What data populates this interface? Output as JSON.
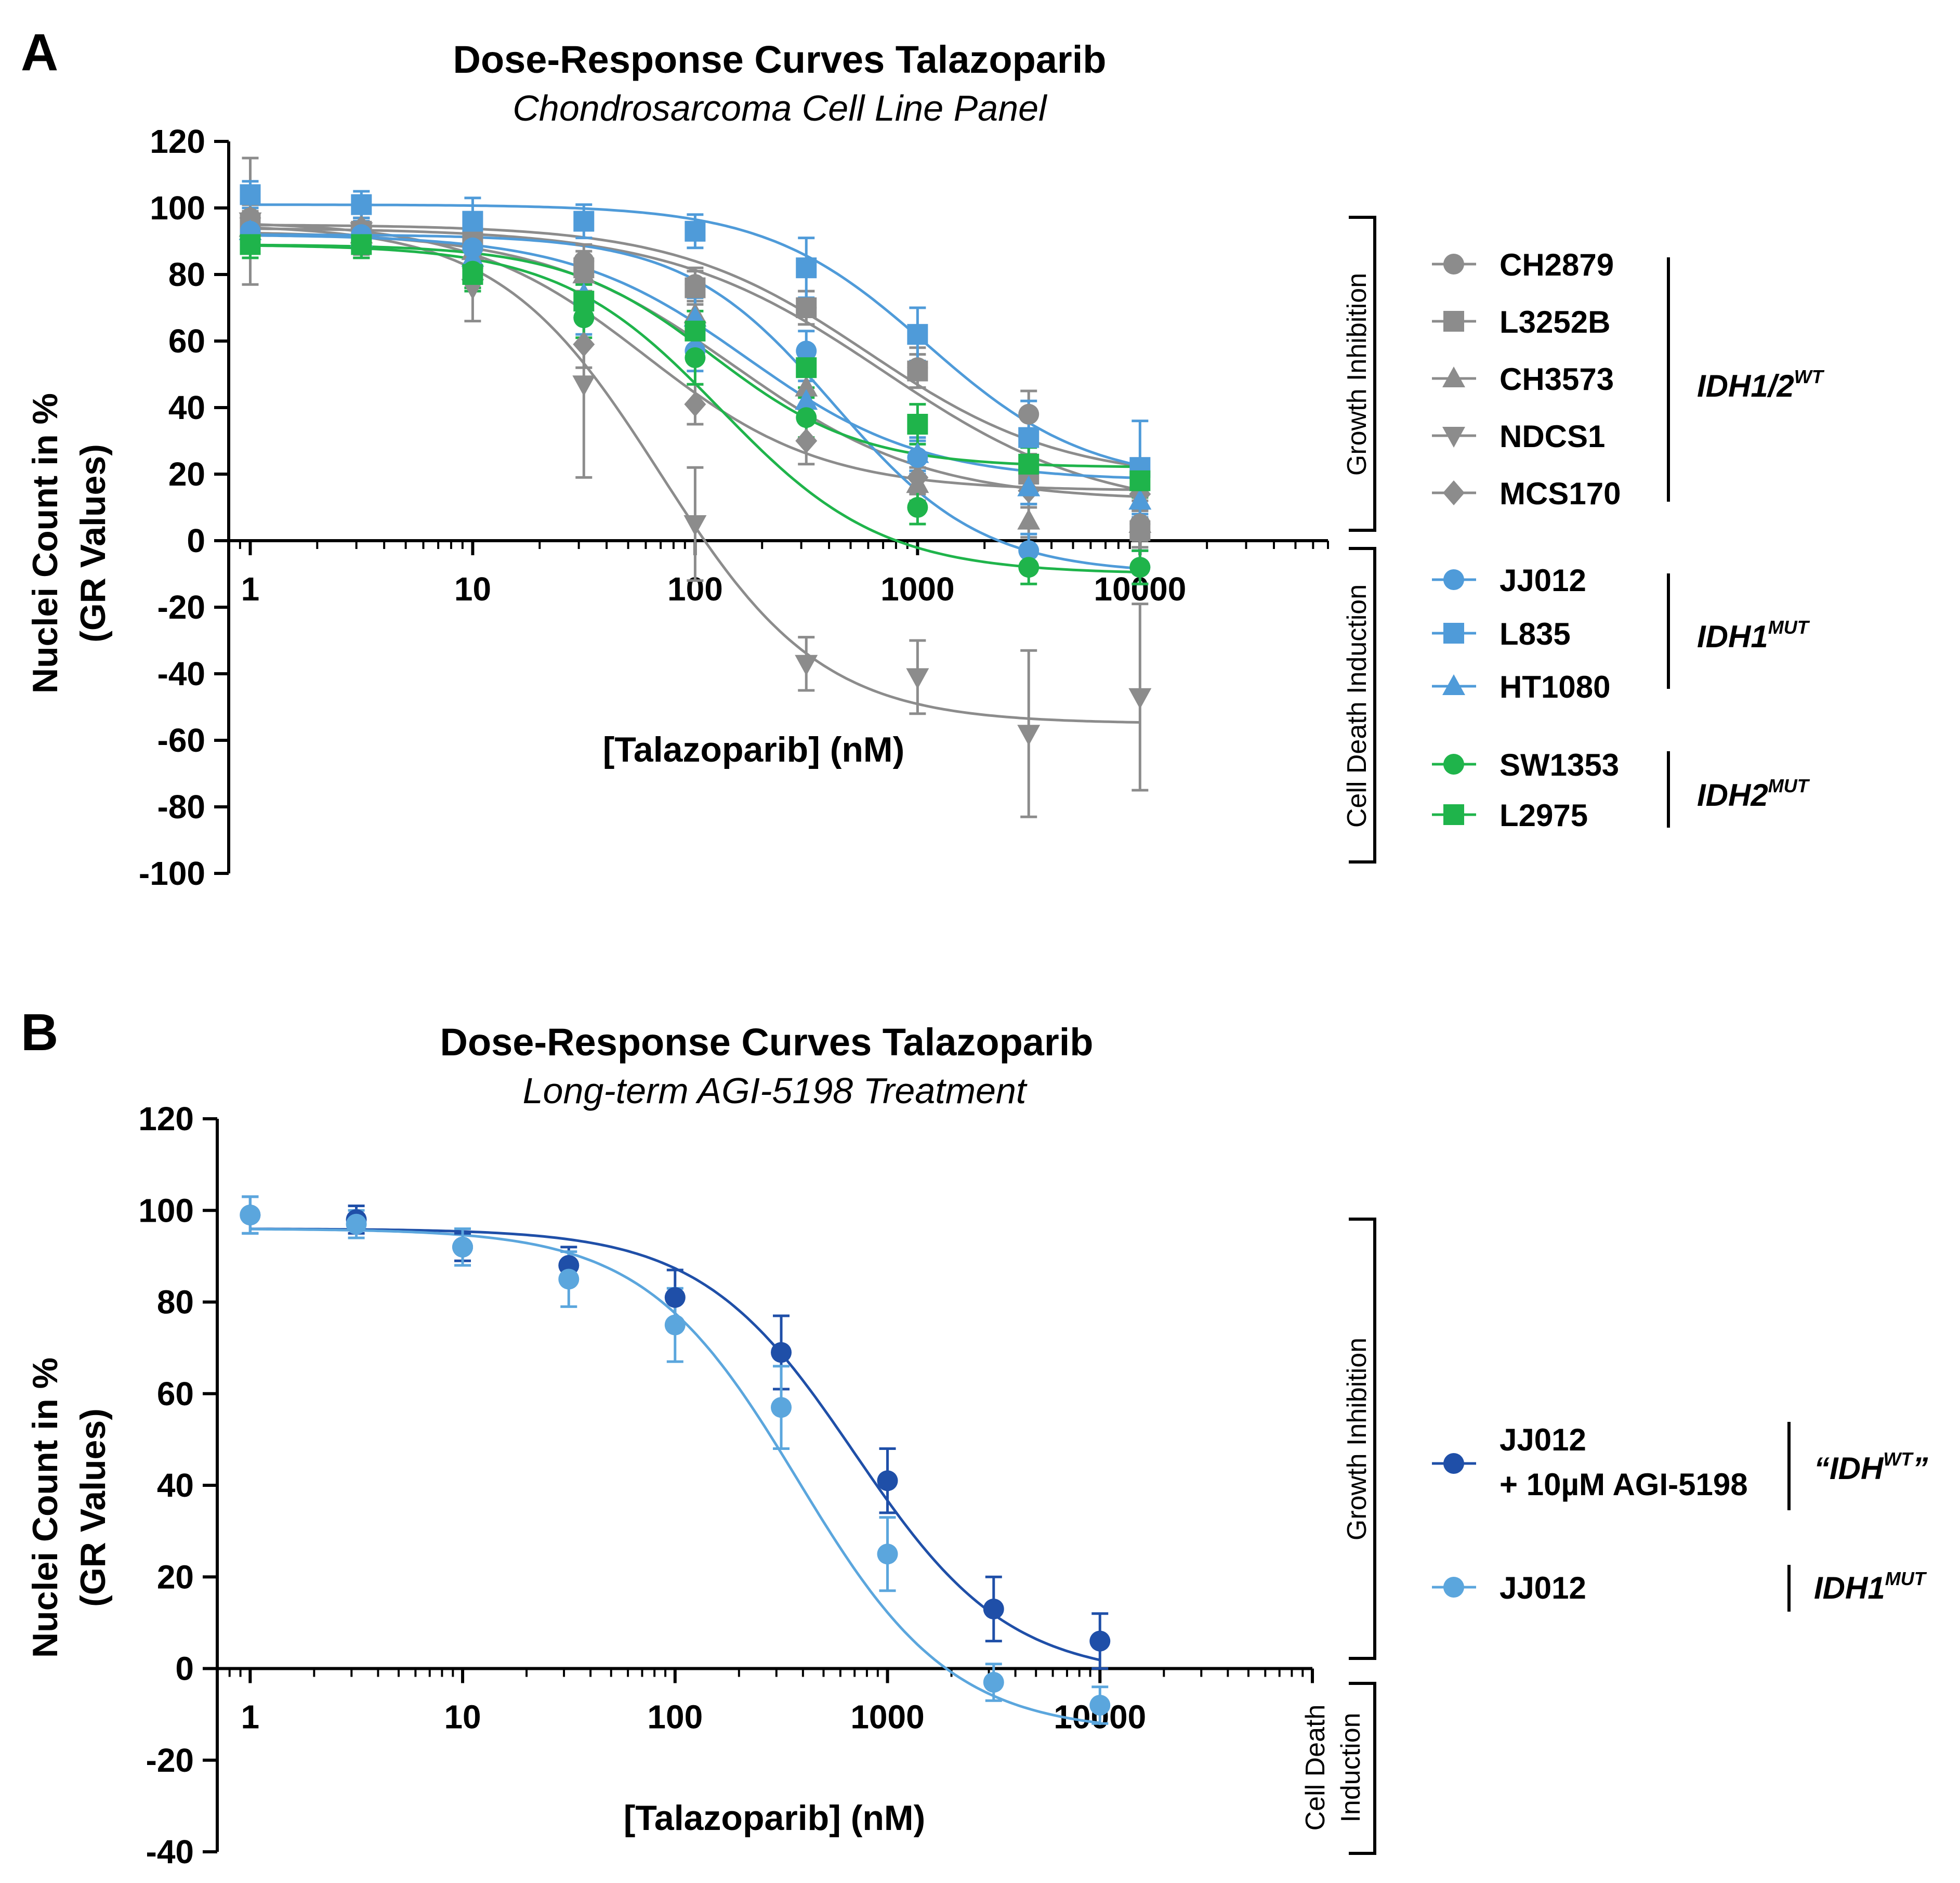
{
  "chart_data": [
    {
      "panel_letter": "A",
      "type": "scatter",
      "title": "Dose-Response Curves Talazoparib",
      "subtitle": "Chondrosarcoma Cell Line Panel",
      "xlabel": "[Talazoparib] (nM)",
      "ylabel_line1": "Nuclei Count in %",
      "ylabel_line2": "(GR Values)",
      "x_scale": "log",
      "xlim": [
        0.8,
        70000
      ],
      "ylim": [
        -100,
        120
      ],
      "x_ticks": [
        1,
        10,
        100,
        1000,
        10000
      ],
      "x_tick_labels": [
        "1",
        "10",
        "100",
        "1000",
        "10000"
      ],
      "y_ticks": [
        -100,
        -80,
        -60,
        -40,
        -20,
        0,
        20,
        40,
        60,
        80,
        100,
        120
      ],
      "y_tick_labels": [
        "-100",
        "-80",
        "-60",
        "-40",
        "-20",
        "0",
        "20",
        "40",
        "60",
        "80",
        "100",
        "120"
      ],
      "response_brackets": [
        "Growth Inhibition",
        "Cell Death Induction"
      ],
      "legend_groups": [
        {
          "label": "IDH1/2",
          "superscript": "WT",
          "series": [
            "CH2879",
            "L3252B",
            "CH3573",
            "NDCS1",
            "MCS170"
          ]
        },
        {
          "label": "IDH1",
          "superscript": "MUT",
          "series": [
            "JJ012",
            "L835",
            "HT1080"
          ]
        },
        {
          "label": "IDH2",
          "superscript": "MUT",
          "series": [
            "SW1353",
            "L2975"
          ]
        }
      ],
      "x": [
        1,
        3.16,
        10,
        31.6,
        100,
        316,
        1000,
        3160,
        10000
      ],
      "series": [
        {
          "name": "CH2879",
          "color": "#8c8c8c",
          "marker": "circle",
          "values": [
            97,
            93,
            88,
            84,
            77,
            70,
            52,
            38,
            5
          ],
          "errors": [
            4,
            4,
            5,
            5,
            5,
            5,
            6,
            7,
            7
          ],
          "fit": {
            "bottom": 18,
            "top": 95,
            "ec50": 600,
            "hill": 1.0
          }
        },
        {
          "name": "L3252B",
          "color": "#8c8c8c",
          "marker": "square",
          "values": [
            95,
            93,
            90,
            82,
            76,
            70,
            51,
            20,
            3
          ],
          "errors": [
            4,
            4,
            5,
            5,
            5,
            5,
            5,
            6,
            6
          ],
          "fit": {
            "bottom": 8,
            "top": 94,
            "ec50": 700,
            "hill": 0.9
          }
        },
        {
          "name": "CH3573",
          "color": "#8c8c8c",
          "marker": "triangle-up",
          "values": [
            94,
            92,
            87,
            80,
            68,
            46,
            17,
            6,
            5
          ],
          "errors": [
            4,
            4,
            5,
            5,
            6,
            6,
            5,
            5,
            5
          ],
          "fit": {
            "bottom": 12,
            "top": 93,
            "ec50": 150,
            "hill": 1.0
          }
        },
        {
          "name": "NDCS1",
          "color": "#8c8c8c",
          "marker": "triangle-down",
          "values": [
            96,
            93,
            76,
            47,
            5,
            -37,
            -41,
            -58,
            -47
          ],
          "errors": [
            19,
            7,
            10,
            28,
            17,
            8,
            11,
            25,
            28
          ],
          "fit": {
            "bottom": -55,
            "top": 95,
            "ec50": 70,
            "hill": 1.2
          }
        },
        {
          "name": "MCS170",
          "color": "#8c8c8c",
          "marker": "diamond",
          "values": [
            97,
            94,
            82,
            59,
            41,
            30,
            19,
            15,
            14
          ],
          "errors": [
            4,
            5,
            6,
            7,
            6,
            7,
            5,
            5,
            5
          ],
          "fit": {
            "bottom": 15,
            "top": 96,
            "ec50": 60,
            "hill": 1.1
          }
        },
        {
          "name": "JJ012",
          "color": "#4f9bd9",
          "marker": "circle",
          "values": [
            93,
            92,
            88,
            67,
            57,
            57,
            25,
            -3,
            -8
          ],
          "errors": [
            4,
            4,
            6,
            5,
            6,
            6,
            5,
            5,
            5
          ],
          "fit": {
            "bottom": -10,
            "top": 92,
            "ec50": 420,
            "hill": 1.3
          }
        },
        {
          "name": "L835",
          "color": "#4f9bd9",
          "marker": "square",
          "values": [
            104,
            101,
            96,
            96,
            93,
            82,
            62,
            31,
            22
          ],
          "errors": [
            4,
            4,
            7,
            5,
            5,
            9,
            8,
            11,
            14
          ],
          "fit": {
            "bottom": 17,
            "top": 101,
            "ec50": 1100,
            "hill": 1.2
          }
        },
        {
          "name": "HT1080",
          "color": "#4f9bd9",
          "marker": "triangle-up",
          "values": [
            93,
            91,
            85,
            74,
            67,
            42,
            26,
            16,
            12
          ],
          "errors": [
            4,
            4,
            5,
            5,
            6,
            6,
            5,
            5,
            5
          ],
          "fit": {
            "bottom": 18,
            "top": 92,
            "ec50": 170,
            "hill": 1.1
          }
        },
        {
          "name": "SW1353",
          "color": "#1fb44b",
          "marker": "circle",
          "values": [
            89,
            89,
            81,
            67,
            55,
            37,
            10,
            -8,
            -8
          ],
          "errors": [
            4,
            4,
            5,
            6,
            8,
            6,
            5,
            5,
            5
          ],
          "fit": {
            "bottom": -10,
            "top": 89,
            "ec50": 130,
            "hill": 1.2
          }
        },
        {
          "name": "L2975",
          "color": "#1fb44b",
          "marker": "square",
          "values": [
            89,
            89,
            80,
            72,
            63,
            52,
            35,
            23,
            18
          ],
          "errors": [
            4,
            4,
            5,
            5,
            6,
            6,
            6,
            5,
            5
          ],
          "fit": {
            "bottom": 22,
            "top": 89,
            "ec50": 120,
            "hill": 1.3
          }
        }
      ]
    },
    {
      "panel_letter": "B",
      "type": "scatter",
      "title": "Dose-Response Curves Talazoparib",
      "subtitle": "Long-term AGI-5198 Treatment",
      "xlabel": "[Talazoparib] (nM)",
      "ylabel_line1": "Nuclei Count in %",
      "ylabel_line2": "(GR Values)",
      "x_scale": "log",
      "xlim": [
        0.7,
        100000
      ],
      "ylim": [
        -40,
        120
      ],
      "x_ticks": [
        1,
        10,
        100,
        1000,
        10000
      ],
      "x_tick_labels": [
        "1",
        "10",
        "100",
        "1000",
        "10000"
      ],
      "y_ticks": [
        -40,
        -20,
        0,
        20,
        40,
        60,
        80,
        100,
        120
      ],
      "y_tick_labels": [
        "-40",
        "-20",
        "0",
        "20",
        "40",
        "60",
        "80",
        "100",
        "120"
      ],
      "response_brackets": [
        "Growth Inhibition",
        "Cell Death",
        "Induction"
      ],
      "legend_groups": [
        {
          "label": "“IDH",
          "superscript": "WT",
          "suffix": "”",
          "series": [
            "JJ012 + 10µM AGI-5198"
          ]
        },
        {
          "label": "IDH1",
          "superscript": "MUT",
          "series": [
            "JJ012"
          ]
        }
      ],
      "x": [
        1,
        3.16,
        10,
        31.6,
        100,
        316,
        1000,
        3160,
        10000
      ],
      "series": [
        {
          "name": "JJ012 + 10µM AGI-5198",
          "name_line1": "JJ012",
          "name_line2": "+ 10µM AGI-5198",
          "color": "#1f4fa8",
          "marker": "circle",
          "values": [
            99,
            98,
            92,
            88,
            81,
            69,
            41,
            13,
            6
          ],
          "errors": [
            4,
            3,
            3,
            4,
            6,
            8,
            7,
            7,
            6
          ],
          "fit": {
            "bottom": -2,
            "top": 96,
            "ec50": 700,
            "hill": 1.2
          }
        },
        {
          "name": "JJ012",
          "color": "#5ba6dd",
          "marker": "circle",
          "values": [
            99,
            97,
            92,
            85,
            75,
            57,
            25,
            -3,
            -8
          ],
          "errors": [
            4,
            3,
            4,
            6,
            8,
            9,
            8,
            4,
            4
          ],
          "fit": {
            "bottom": -14,
            "top": 96,
            "ec50": 380,
            "hill": 1.2
          }
        }
      ]
    }
  ]
}
